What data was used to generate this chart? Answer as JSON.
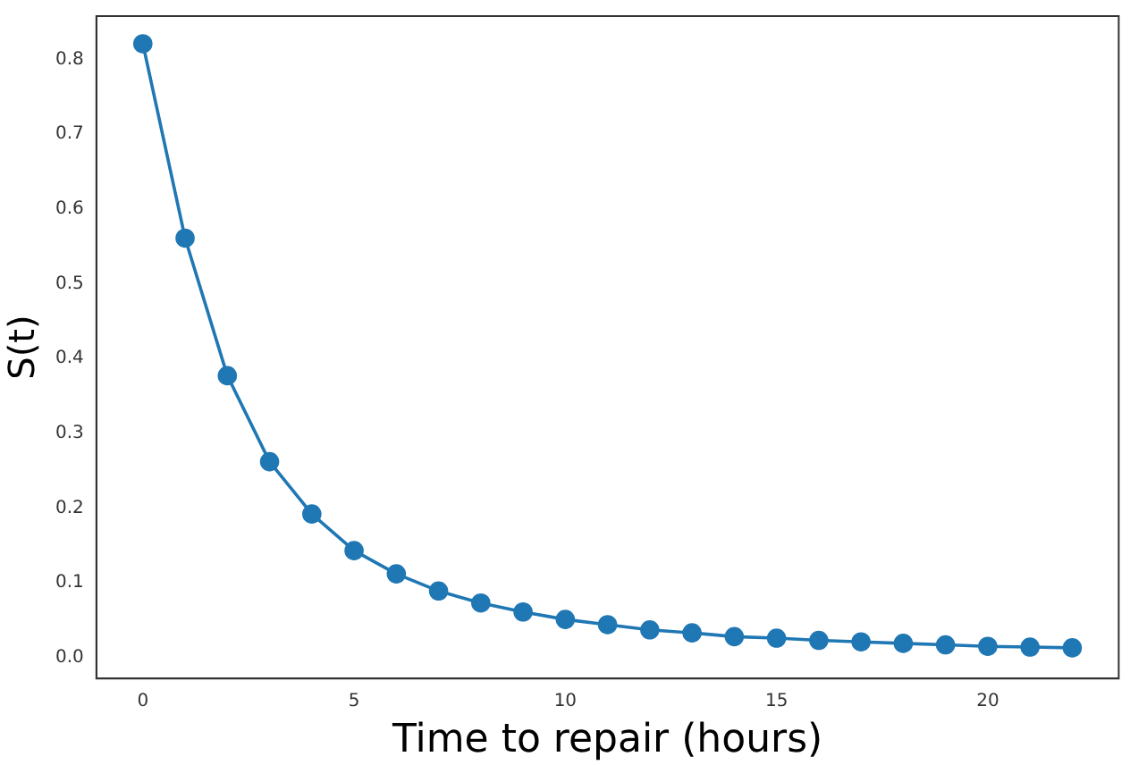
{
  "chart_data": {
    "type": "line",
    "xlabel": "Time to repair (hours)",
    "ylabel": "S(t)",
    "x": [
      0,
      1,
      2,
      3,
      4,
      5,
      6,
      7,
      8,
      9,
      10,
      11,
      12,
      13,
      14,
      15,
      16,
      17,
      18,
      19,
      20,
      21,
      22
    ],
    "series": [
      {
        "color": "#1f77b4",
        "values": [
          0.821,
          0.561,
          0.377,
          0.262,
          0.192,
          0.143,
          0.112,
          0.089,
          0.073,
          0.061,
          0.051,
          0.044,
          0.037,
          0.033,
          0.028,
          0.026,
          0.023,
          0.021,
          0.019,
          0.017,
          0.015,
          0.014,
          0.013
        ]
      }
    ],
    "xlim": [
      -1.1,
      23.1
    ],
    "xticks": [
      0,
      5,
      10,
      15,
      20
    ],
    "ylim": [
      -0.028,
      0.858
    ],
    "yticks": [
      {
        "value": 0,
        "label": "0.0"
      },
      0.1,
      0.2,
      0.3,
      0.4,
      0.5,
      0.6,
      0.7,
      0.8
    ],
    "marker": "circle",
    "grid": false,
    "legend": false
  }
}
